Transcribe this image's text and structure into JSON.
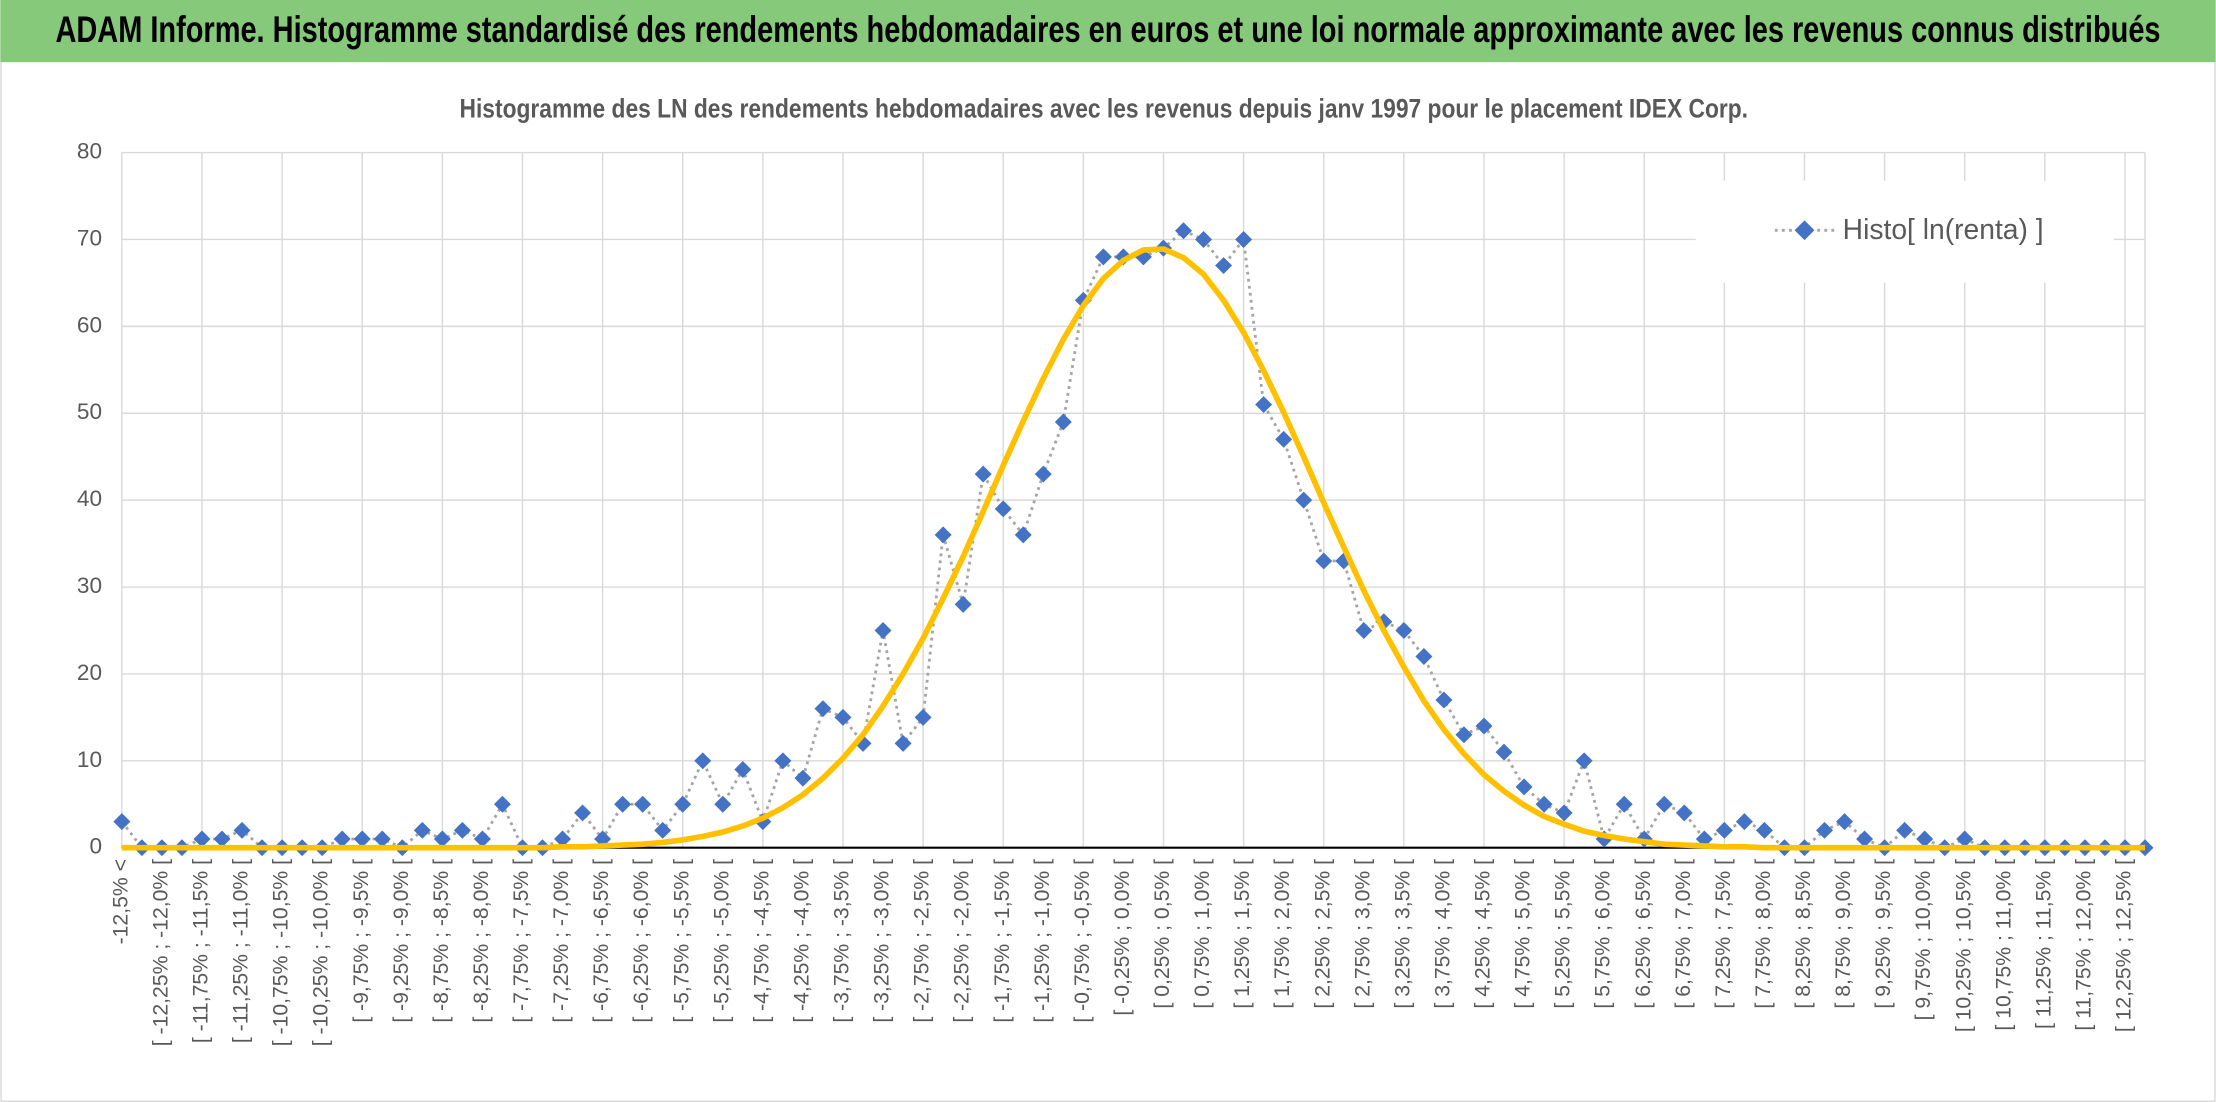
{
  "header": {
    "title": "ADAM Informe. Histogramme standardisé des rendements hebdomadaires en euros et une loi normale approximante avec les revenus connus distribués"
  },
  "chart_data": {
    "type": "line",
    "title": "Histogramme des LN des rendements hebdomadaires avec les revenus depuis janv 1997 pour le placement IDEX Corp.",
    "categories": [
      "-12,5% <",
      null,
      "[ -12,25% ; -12,0% [",
      null,
      "[ -11,75% ; -11,5% [",
      null,
      "[ -11,25% ; -11,0% [",
      null,
      "[ -10,75% ; -10,5% [",
      null,
      "[ -10,25% ; -10,0% [",
      null,
      "[ -9,75% ; -9,5% [",
      null,
      "[ -9,25% ; -9,0% [",
      null,
      "[ -8,75% ; -8,5% [",
      null,
      "[ -8,25% ; -8,0% [",
      null,
      "[ -7,75% ; -7,5% [",
      null,
      "[ -7,25% ; -7,0% [",
      null,
      "[ -6,75% ; -6,5% [",
      null,
      "[ -6,25% ; -6,0% [",
      null,
      "[ -5,75% ; -5,5% [",
      null,
      "[ -5,25% ; -5,0% [",
      null,
      "[ -4,75% ; -4,5% [",
      null,
      "[ -4,25% ; -4,0% [",
      null,
      "[ -3,75% ; -3,5% [",
      null,
      "[ -3,25% ; -3,0% [",
      null,
      "[ -2,75% ; -2,5% [",
      null,
      "[ -2,25% ; -2,0% [",
      null,
      "[ -1,75% ; -1,5% [",
      null,
      "[ -1,25% ; -1,0% [",
      null,
      "[ -0,75% ; -0,5% [",
      null,
      "[ -0,25% ; 0,0% [",
      null,
      "[ 0,25% ; 0,5% [",
      null,
      "[ 0,75% ; 1,0% [",
      null,
      "[ 1,25% ; 1,5% [",
      null,
      "[ 1,75% ; 2,0% [",
      null,
      "[ 2,25% ; 2,5% [",
      null,
      "[ 2,75% ; 3,0% [",
      null,
      "[ 3,25% ; 3,5% [",
      null,
      "[ 3,75% ; 4,0% [",
      null,
      "[ 4,25% ; 4,5% [",
      null,
      "[ 4,75% ; 5,0% [",
      null,
      "[ 5,25% ; 5,5% [",
      null,
      "[ 5,75% ; 6,0% [",
      null,
      "[ 6,25% ; 6,5% [",
      null,
      "[ 6,75% ; 7,0% [",
      null,
      "[ 7,25% ; 7,5% [",
      null,
      "[ 7,75% ; 8,0% [",
      null,
      "[ 8,25% ; 8,5% [",
      null,
      "[ 8,75% ; 9,0% [",
      null,
      "[ 9,25% ; 9,5% [",
      null,
      "[ 9,75% ; 10,0% [",
      null,
      "[ 10,25% ; 10,5% [",
      null,
      "[ 10,75% ; 11,0% [",
      null,
      "[ 11,25% ; 11,5% [",
      null,
      "[ 11,75% ; 12,0% [",
      null,
      "[ 12,25% ; 12,5% [",
      null
    ],
    "series": [
      {
        "name": "Histo[ ln(renta) ]",
        "color": "#4472c4",
        "line_color": "#a5a5a5",
        "line_style": "dotted",
        "marker": "diamond",
        "values": [
          3,
          0,
          0,
          0,
          1,
          1,
          2,
          0,
          0,
          0,
          0,
          1,
          1,
          1,
          0,
          2,
          1,
          2,
          1,
          5,
          0,
          0,
          1,
          4,
          1,
          5,
          5,
          2,
          5,
          10,
          5,
          9,
          3,
          10,
          8,
          16,
          15,
          12,
          25,
          12,
          15,
          36,
          28,
          43,
          39,
          36,
          43,
          49,
          63,
          68,
          68,
          68,
          69,
          71,
          70,
          67,
          70,
          51,
          47,
          40,
          33,
          33,
          25,
          26,
          25,
          22,
          17,
          13,
          14,
          11,
          7,
          5,
          4,
          10,
          1,
          5,
          1,
          5,
          4,
          1,
          2,
          3,
          2,
          0,
          0,
          2,
          3,
          1,
          0,
          2,
          1,
          0,
          1,
          0,
          0,
          0,
          0,
          0,
          0,
          0,
          0,
          0
        ]
      },
      {
        "color": "#ffc000",
        "line_style": "solid",
        "marker": "none",
        "values": [
          0,
          0,
          0,
          0,
          0,
          0,
          0,
          0,
          0,
          0,
          0,
          0,
          0,
          0,
          0,
          0,
          0,
          0,
          0,
          0,
          0,
          0,
          0.1,
          0.1,
          0.2,
          0.3,
          0.4,
          0.6,
          0.9,
          1.3,
          1.8,
          2.5,
          3.4,
          4.6,
          6.1,
          8.0,
          10.3,
          13.0,
          16.3,
          20.0,
          24.1,
          28.7,
          33.5,
          38.7,
          44.0,
          49.1,
          54.0,
          58.5,
          62.4,
          65.5,
          67.6,
          68.8,
          68.9,
          67.9,
          66.0,
          63.0,
          59.3,
          54.9,
          50.1,
          45.0,
          39.7,
          34.6,
          29.6,
          25.0,
          20.8,
          16.9,
          13.6,
          10.8,
          8.4,
          6.5,
          4.9,
          3.6,
          2.7,
          1.9,
          1.4,
          1.0,
          0.7,
          0.4,
          0.3,
          0.2,
          0.1,
          0.1,
          0,
          0,
          0,
          0,
          0,
          0,
          0,
          0,
          0,
          0,
          0,
          0,
          0,
          0,
          0,
          0,
          0,
          0,
          0,
          0
        ]
      }
    ],
    "ylim": [
      0,
      80
    ],
    "yticks": [
      0,
      10,
      20,
      30,
      40,
      50,
      60,
      70,
      80
    ],
    "grid": true,
    "legend": "top-right"
  }
}
